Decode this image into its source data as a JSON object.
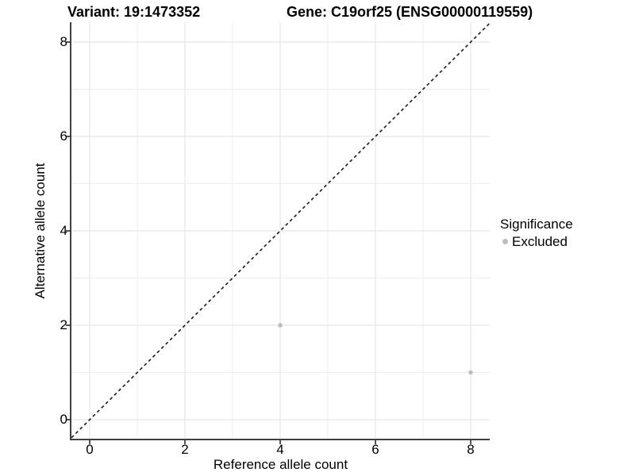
{
  "chart_data": {
    "type": "scatter",
    "title_left": "Variant: 19:1473352",
    "title_right": "Gene: C19orf25 (ENSG00000119559)",
    "xlabel": "Reference allele count",
    "ylabel": "Alternative allele count",
    "xlim": [
      -0.4,
      8.4
    ],
    "ylim": [
      -0.4,
      8.4
    ],
    "x_ticks": [
      0,
      2,
      4,
      6,
      8
    ],
    "y_ticks": [
      0,
      2,
      4,
      6,
      8
    ],
    "x_minor_ticks": [
      1,
      3,
      5,
      7
    ],
    "y_minor_ticks": [
      1,
      3,
      5,
      7
    ],
    "grid": "major and minor, light gray on white",
    "points": [
      {
        "x": 4,
        "y": 2,
        "significance": "Excluded"
      },
      {
        "x": 8,
        "y": 1,
        "significance": "Excluded"
      }
    ],
    "identity_line": {
      "style": "dashed",
      "slope": 1,
      "intercept": 0,
      "color": "#1a1a1a"
    },
    "legend": {
      "title": "Significance",
      "position": "right",
      "entries": [
        {
          "label": "Excluded",
          "color": "#bdbdbd"
        }
      ]
    },
    "colors": {
      "point": "#bdbdbd",
      "grid_major": "#e2e2e2",
      "grid_minor": "#ededed",
      "axis": "#404040",
      "text": "#000000",
      "background": "#ffffff"
    }
  }
}
